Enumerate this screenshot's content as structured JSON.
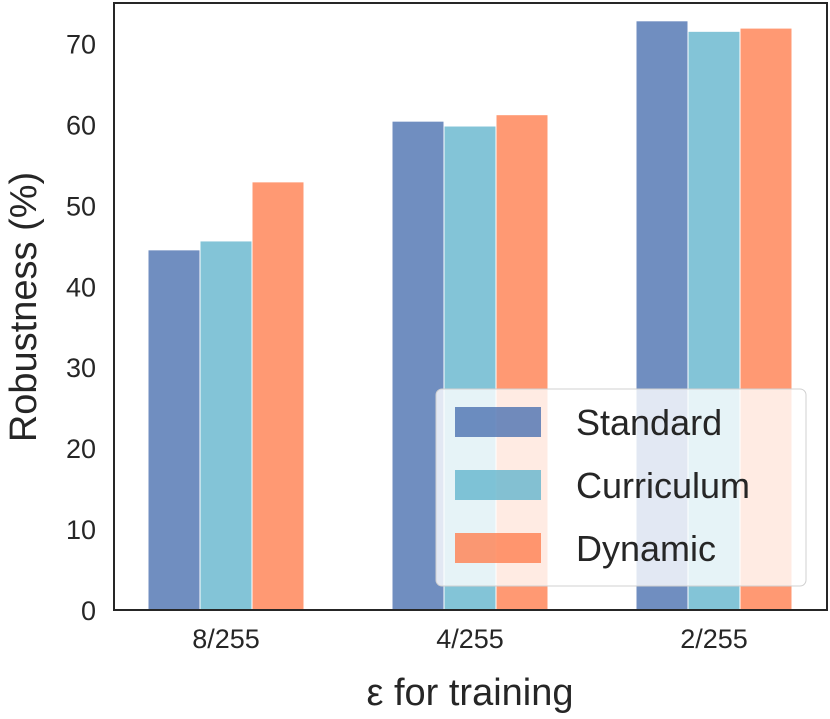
{
  "chart_data": {
    "type": "bar",
    "title": "",
    "xlabel": "ε for training",
    "ylabel": "Robustness (%)",
    "categories": [
      "8/255",
      "4/255",
      "2/255"
    ],
    "ylim": [
      0,
      75
    ],
    "yticks": [
      "0",
      "10",
      "20",
      "30",
      "40",
      "50",
      "60",
      "70"
    ],
    "grid": false,
    "legend_position": "lower-right",
    "series": [
      {
        "name": "Standard",
        "color": "#4c72b0",
        "values": [
          44.5,
          60.4,
          72.8
        ]
      },
      {
        "name": "Curriculum",
        "color": "#64b5cd",
        "values": [
          45.6,
          59.8,
          71.5
        ]
      },
      {
        "name": "Dynamic",
        "color": "#ff7f50",
        "values": [
          52.9,
          61.2,
          71.9
        ]
      }
    ]
  }
}
